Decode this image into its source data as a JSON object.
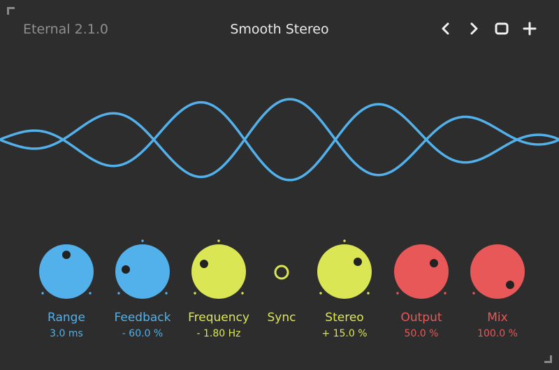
{
  "header": {
    "version": "Eternal 2.1.0",
    "preset": "Smooth Stereo",
    "icons": [
      "chevron-left-icon",
      "chevron-right-icon",
      "square-icon",
      "plus-icon"
    ]
  },
  "colors": {
    "background": "#2d2d2d",
    "blue": "#52b0ea",
    "yellow": "#dbe655",
    "red": "#e85858",
    "wave": "#52b0ea"
  },
  "controls": [
    {
      "label": "Range",
      "value": "3.0 ms",
      "color": "#52b0ea"
    },
    {
      "label": "Feedback",
      "value": "- 60.0 %",
      "color": "#52b0ea"
    },
    {
      "label": "Frequency",
      "value": "- 1.80 Hz",
      "color": "#dbe655"
    },
    {
      "label": "Sync",
      "value": "",
      "color": "#dbe655"
    },
    {
      "label": "Stereo",
      "value": "+ 15.0 %",
      "color": "#dbe655"
    },
    {
      "label": "Output",
      "value": "50.0 %",
      "color": "#e85858"
    },
    {
      "label": "Mix",
      "value": "100.0 %",
      "color": "#e85858"
    }
  ]
}
